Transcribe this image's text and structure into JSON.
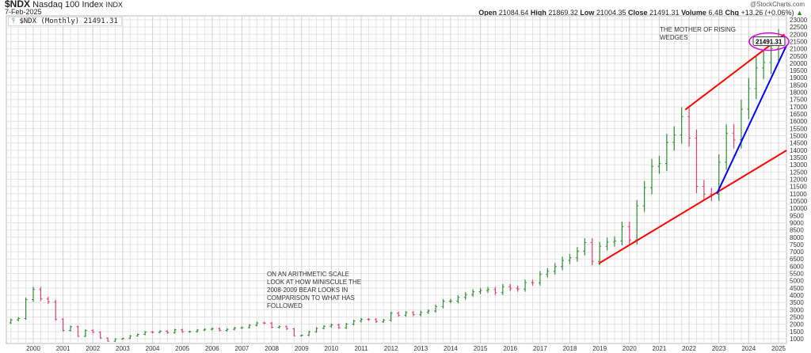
{
  "header": {
    "symbol": "$NDX",
    "name": "Nasdaq 100 Index",
    "exchange": "INDX",
    "date": "7-Feb-2025",
    "legend": "$NDX (Monthly) 21491.31",
    "credit": "@StockCharts.com",
    "ohlc": {
      "open_label": "Open",
      "open": "21084.64",
      "high_label": "High",
      "high": "21869.32",
      "low_label": "Low",
      "low": "21004.35",
      "close_label": "Close",
      "close": "21491.31",
      "volume_label": "Volume",
      "volume": "6.4B",
      "chg_label": "Chg",
      "chg": "+13.26 (+0.06%)"
    }
  },
  "chart_data": {
    "type": "ohlc",
    "title": "$NDX Nasdaq 100 Index (Monthly)",
    "xlim": [
      1999.1,
      2025.3
    ],
    "ylim": [
      600,
      23400
    ],
    "x_ticks": [
      "2000",
      "2001",
      "2002",
      "2003",
      "2004",
      "2005",
      "2006",
      "2007",
      "2008",
      "2009",
      "2010",
      "2011",
      "2012",
      "2013",
      "2014",
      "2015",
      "2016",
      "2017",
      "2018",
      "2019",
      "2020",
      "2021",
      "2022",
      "2023",
      "2024",
      "2025"
    ],
    "y_ticks": [
      1000,
      1500,
      2000,
      2500,
      3000,
      3500,
      4000,
      4500,
      5000,
      5500,
      6000,
      6500,
      7000,
      7500,
      8000,
      8500,
      9000,
      9500,
      10000,
      10500,
      11000,
      11500,
      12000,
      12500,
      13000,
      13500,
      14000,
      14500,
      15000,
      15500,
      16000,
      16500,
      17000,
      17500,
      18000,
      18500,
      19000,
      19500,
      20000,
      20500,
      21000,
      21500,
      22000,
      22500,
      23000
    ],
    "series_start": 1999.0,
    "series_step": 0.25,
    "closes": [
      2100,
      2300,
      2400,
      3700,
      4400,
      3750,
      3550,
      2340,
      1570,
      1830,
      1170,
      1580,
      1450,
      1050,
      830,
      985,
      1020,
      1200,
      1300,
      1470,
      1440,
      1520,
      1410,
      1620,
      1480,
      1490,
      1600,
      1650,
      1700,
      1570,
      1650,
      1750,
      1770,
      1930,
      2090,
      2080,
      1780,
      1840,
      1680,
      1210,
      1240,
      1480,
      1720,
      1860,
      1960,
      1750,
      2010,
      2220,
      2340,
      2330,
      2180,
      2280,
      2760,
      2620,
      2800,
      2660,
      2820,
      2910,
      3220,
      3590,
      3600,
      3850,
      4050,
      4240,
      4330,
      4400,
      4180,
      4590,
      4480,
      4420,
      4880,
      4860,
      5440,
      5650,
      5980,
      6400,
      6580,
      7040,
      7630,
      6330,
      7380,
      7670,
      7750,
      8730,
      7810,
      10160,
      11420,
      12890,
      13090,
      14550,
      15050,
      16320,
      14840,
      11500,
      10970,
      10940,
      13180,
      15180,
      14710,
      16830,
      18250,
      19680,
      20060,
      21010,
      21491.31
    ],
    "trendlines": [
      {
        "name": "upper-wedge",
        "color": "#ff0000",
        "from": [
          2021.87,
          16800
        ],
        "to": [
          2025.2,
          22000
        ]
      },
      {
        "name": "lower-wedge",
        "color": "#ff0000",
        "from": [
          2018.97,
          6190
        ],
        "to": [
          2025.27,
          13990
        ]
      },
      {
        "name": "blue-support",
        "color": "#0000ff",
        "from": [
          2022.93,
          11000
        ],
        "to": [
          2025.27,
          21250
        ]
      }
    ],
    "last_value_label": "21491.31",
    "annotations": [
      {
        "text": "THE MOTHER OF RISING\nWEDGES"
      },
      {
        "text": "ON AN ARITHMETIC SCALE\nLOOK AT HOW MINISCULE THE\n2008-2009 BEAR LOOKS IN\nCOMPARISON TO WHAT HAS\nFOLLOWED"
      }
    ],
    "colors": {
      "up": "#2e8b2e",
      "down": "#e0406a",
      "grid": "#e4e4e4",
      "circle": "#e000e0"
    }
  }
}
